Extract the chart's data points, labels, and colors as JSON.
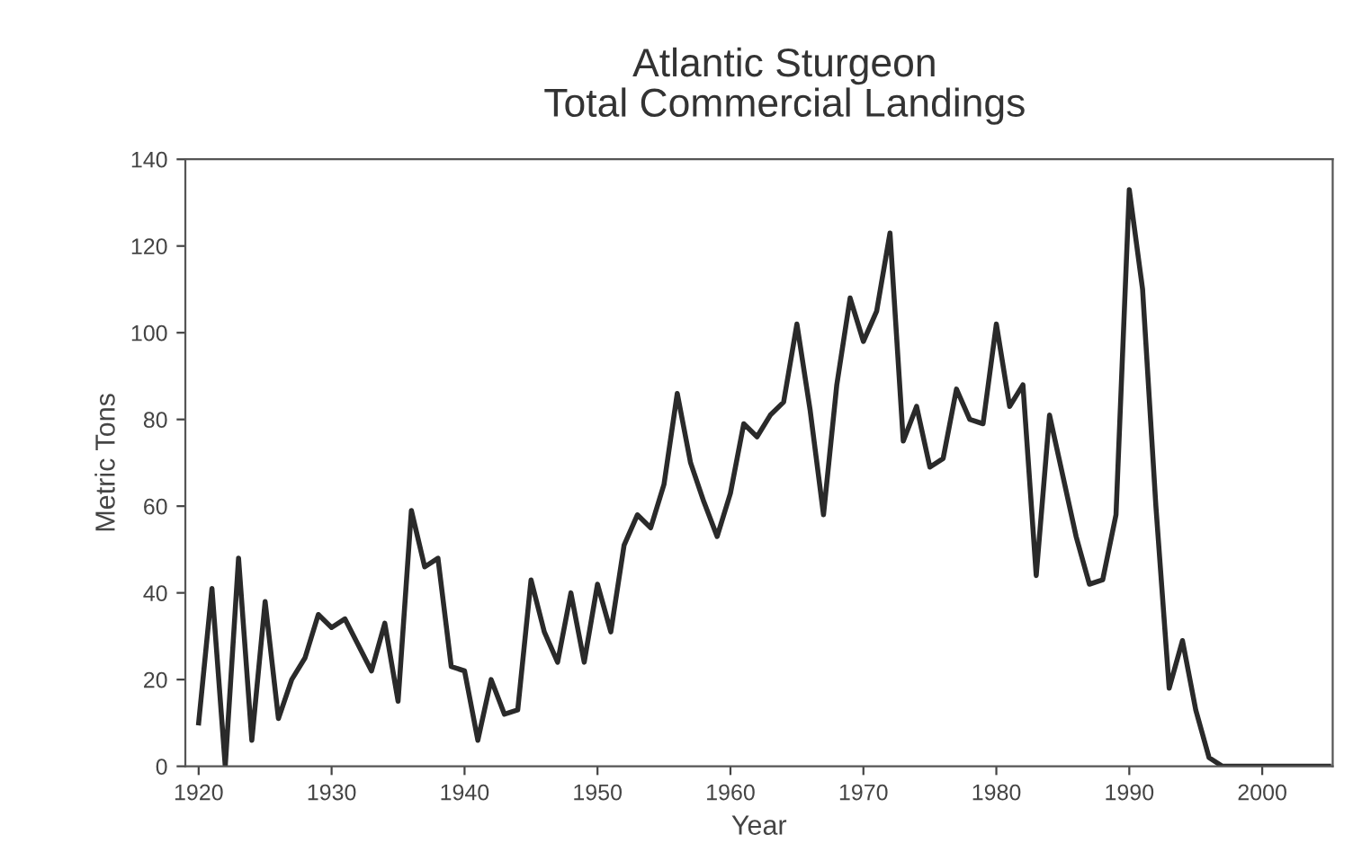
{
  "chart_data": {
    "type": "line",
    "title": "Atlantic Sturgeon\nTotal Commercial Landings",
    "xlabel": "Year",
    "ylabel": "Metric Tons",
    "x": [
      1920,
      1921,
      1922,
      1923,
      1924,
      1925,
      1926,
      1927,
      1928,
      1929,
      1930,
      1931,
      1932,
      1933,
      1934,
      1935,
      1936,
      1937,
      1938,
      1939,
      1940,
      1941,
      1942,
      1943,
      1944,
      1945,
      1946,
      1947,
      1948,
      1949,
      1950,
      1951,
      1952,
      1953,
      1954,
      1955,
      1956,
      1957,
      1958,
      1959,
      1960,
      1961,
      1962,
      1963,
      1964,
      1965,
      1966,
      1967,
      1968,
      1969,
      1970,
      1971,
      1972,
      1973,
      1974,
      1975,
      1976,
      1977,
      1978,
      1979,
      1980,
      1981,
      1982,
      1983,
      1984,
      1985,
      1986,
      1987,
      1988,
      1989,
      1990,
      1991,
      1992,
      1993,
      1994,
      1995,
      1996,
      1997,
      1998,
      1999,
      2000,
      2001,
      2002,
      2003,
      2004,
      2005
    ],
    "series": [
      {
        "color": "#2a2a2a",
        "values": [
          10,
          41,
          0,
          48,
          6,
          38,
          11,
          20,
          25,
          35,
          32,
          34,
          28,
          22,
          33,
          15,
          59,
          46,
          48,
          23,
          22,
          6,
          20,
          12,
          13,
          43,
          31,
          24,
          40,
          24,
          42,
          31,
          51,
          58,
          55,
          65,
          86,
          70,
          61,
          53,
          63,
          79,
          76,
          81,
          84,
          102,
          82,
          58,
          88,
          108,
          98,
          105,
          123,
          75,
          83,
          69,
          71,
          87,
          80,
          79,
          102,
          83,
          88,
          44,
          81,
          67,
          53,
          42,
          43,
          58,
          133,
          110,
          60,
          18,
          29,
          13,
          2,
          0,
          0,
          0,
          0,
          0,
          0,
          0,
          0,
          0
        ]
      }
    ],
    "xlim": [
      1919,
      2005.3
    ],
    "ylim": [
      0,
      140
    ],
    "xticks": [
      1920,
      1930,
      1940,
      1950,
      1960,
      1970,
      1980,
      1990,
      2000
    ],
    "yticks": [
      0,
      20,
      40,
      60,
      80,
      100,
      120,
      140
    ],
    "grid": false,
    "legend": false,
    "marker": "none",
    "line_style": "solid"
  }
}
